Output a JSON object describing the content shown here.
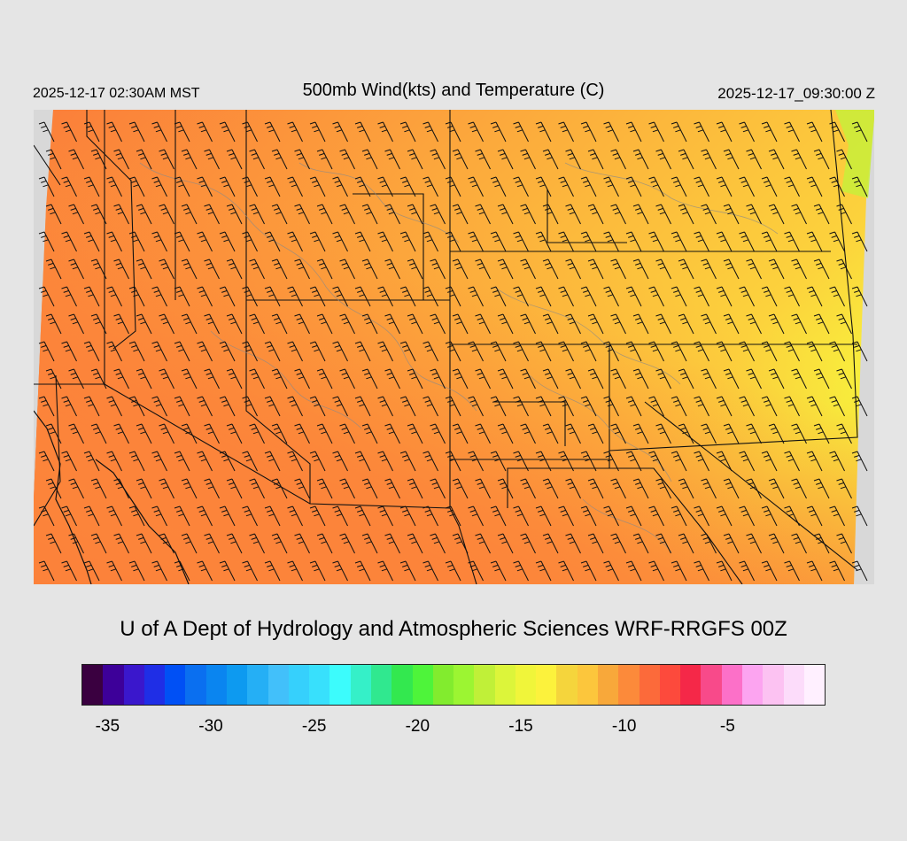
{
  "header": {
    "local_time": "2025-12-17 02:30AM MST",
    "title": "500mb Wind(kts) and Temperature (C)",
    "valid_time": "2025-12-17_09:30:00 Z"
  },
  "footer": {
    "credit": "U of A Dept of Hydrology and Atmospheric Sciences WRF-RRGFS 00Z"
  },
  "map": {
    "variable": "temperature",
    "units": "C",
    "wind_barbs": "wind (kts)",
    "wind_direction": "northwesterly"
  },
  "colorbar": {
    "colors": [
      "#3a0040",
      "#3d0099",
      "#3a17cc",
      "#1f2ee6",
      "#0050f5",
      "#0a6ff0",
      "#0a85f0",
      "#0d9af0",
      "#25aff5",
      "#42c0fa",
      "#36d0fc",
      "#38e0fc",
      "#3cfcfc",
      "#35f0c8",
      "#30e88f",
      "#33e84f",
      "#4ef43a",
      "#82ec2e",
      "#9cf532",
      "#c0f038",
      "#dcf53a",
      "#f0f53a",
      "#fcf23c",
      "#f5d53c",
      "#fcc63c",
      "#f8a83a",
      "#fc8a3a",
      "#fc6a3a",
      "#fd4a3c",
      "#f52848",
      "#f84a8a",
      "#fc70c8",
      "#fca4f0",
      "#fcc2f2",
      "#fcdcfa",
      "#fff0ff"
    ],
    "tick_labels": [
      {
        "value": -35,
        "text": "-35"
      },
      {
        "value": -30,
        "text": "-30"
      },
      {
        "value": -25,
        "text": "-25"
      },
      {
        "value": -20,
        "text": "-20"
      },
      {
        "value": -15,
        "text": "-15"
      },
      {
        "value": -10,
        "text": "-10"
      },
      {
        "value": -5,
        "text": "-5"
      }
    ],
    "min": -36,
    "max": 0
  }
}
